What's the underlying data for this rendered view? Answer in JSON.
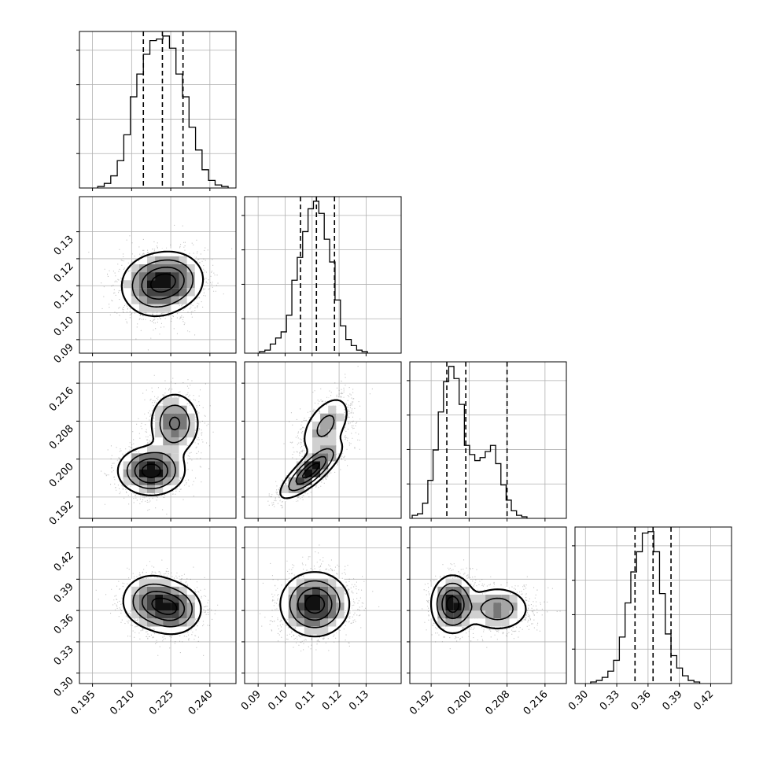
{
  "chart_data": {
    "type": "corner",
    "grid": true,
    "parameters": [
      {
        "range": [
          0.19,
          0.25
        ],
        "ticks": [
          0.195,
          0.21,
          0.225,
          0.24
        ],
        "tick_labels": [
          "0.195",
          "0.210",
          "0.225",
          "0.240"
        ],
        "quantiles": [
          0.2145,
          0.2218,
          0.2297
        ],
        "hist": {
          "start": 0.197,
          "width": 0.0025,
          "counts": [
            1,
            3,
            8,
            18,
            35,
            60,
            75,
            88,
            97,
            98,
            100,
            92,
            75,
            60,
            40,
            25,
            12,
            5,
            2,
            1
          ]
        }
      },
      {
        "range": [
          0.085,
          0.143
        ],
        "ticks": [
          0.09,
          0.1,
          0.11,
          0.12,
          0.13
        ],
        "tick_labels": [
          "0.09",
          "0.10",
          "0.11",
          "0.12",
          "0.13"
        ],
        "quantiles": [
          0.1057,
          0.1116,
          0.1183
        ],
        "hist": {
          "start": 0.0905,
          "width": 0.002,
          "counts": [
            1,
            2,
            6,
            10,
            14,
            25,
            48,
            63,
            80,
            95,
            100,
            92,
            75,
            60,
            35,
            18,
            9,
            5,
            2,
            1
          ]
        }
      },
      {
        "range": [
          0.1875,
          0.2205
        ],
        "ticks": [
          0.192,
          0.2,
          0.208,
          0.216
        ],
        "tick_labels": [
          "0.192",
          "0.200",
          "0.208",
          "0.216"
        ],
        "quantiles": [
          0.1953,
          0.1993,
          0.208
        ],
        "hist": {
          "start": 0.188,
          "width": 0.0011,
          "counts": [
            2,
            3,
            10,
            25,
            45,
            70,
            90,
            100,
            92,
            75,
            48,
            42,
            38,
            40,
            44,
            48,
            36,
            22,
            12,
            5,
            2,
            1
          ]
        }
      },
      {
        "range": [
          0.29,
          0.44
        ],
        "ticks": [
          0.3,
          0.33,
          0.36,
          0.39,
          0.42
        ],
        "tick_labels": [
          "0.30",
          "0.33",
          "0.36",
          "0.39",
          "0.42"
        ],
        "quantiles": [
          0.3475,
          0.3648,
          0.382
        ],
        "hist": {
          "start": 0.305,
          "width": 0.0055,
          "counts": [
            1,
            2,
            4,
            8,
            15,
            30,
            52,
            72,
            85,
            97,
            98,
            85,
            58,
            32,
            18,
            10,
            5,
            2,
            1
          ]
        }
      }
    ],
    "pairs": [
      {
        "x": 0,
        "y": 1,
        "modes": [
          {
            "mx": 0.2185,
            "my": 0.1098,
            "sx": 0.0065,
            "sy": 0.0058,
            "rho": 0.0,
            "w": 0.6
          },
          {
            "mx": 0.2265,
            "my": 0.1125,
            "sx": 0.006,
            "sy": 0.0052,
            "rho": 0.0,
            "w": 0.4
          }
        ]
      },
      {
        "x": 0,
        "y": 2,
        "modes": [
          {
            "mx": 0.2175,
            "my": 0.1975,
            "sx": 0.0062,
            "sy": 0.0025,
            "rho": 0.0,
            "w": 0.6
          },
          {
            "mx": 0.2265,
            "my": 0.2075,
            "sx": 0.0048,
            "sy": 0.0033,
            "rho": 0.0,
            "w": 0.4
          }
        ]
      },
      {
        "x": 1,
        "y": 2,
        "modes": [
          {
            "mx": 0.1095,
            "my": 0.1975,
            "sx": 0.0055,
            "sy": 0.0028,
            "rho": 0.8,
            "w": 0.6
          },
          {
            "mx": 0.115,
            "my": 0.207,
            "sx": 0.005,
            "sy": 0.0035,
            "rho": 0.5,
            "w": 0.4
          }
        ]
      },
      {
        "x": 0,
        "y": 3,
        "modes": [
          {
            "mx": 0.2175,
            "my": 0.369,
            "sx": 0.0058,
            "sy": 0.013,
            "rho": 0.0,
            "w": 0.5
          },
          {
            "mx": 0.226,
            "my": 0.361,
            "sx": 0.0055,
            "sy": 0.012,
            "rho": 0.0,
            "w": 0.5
          }
        ]
      },
      {
        "x": 1,
        "y": 3,
        "modes": [
          {
            "mx": 0.111,
            "my": 0.366,
            "sx": 0.0062,
            "sy": 0.015,
            "rho": 0.0,
            "w": 1.0
          }
        ]
      },
      {
        "x": 2,
        "y": 3,
        "modes": [
          {
            "mx": 0.1965,
            "my": 0.366,
            "sx": 0.0022,
            "sy": 0.0135,
            "rho": 0.0,
            "w": 0.6
          },
          {
            "mx": 0.206,
            "my": 0.3615,
            "sx": 0.0035,
            "sy": 0.011,
            "rho": 0.0,
            "w": 0.4
          }
        ]
      }
    ]
  }
}
